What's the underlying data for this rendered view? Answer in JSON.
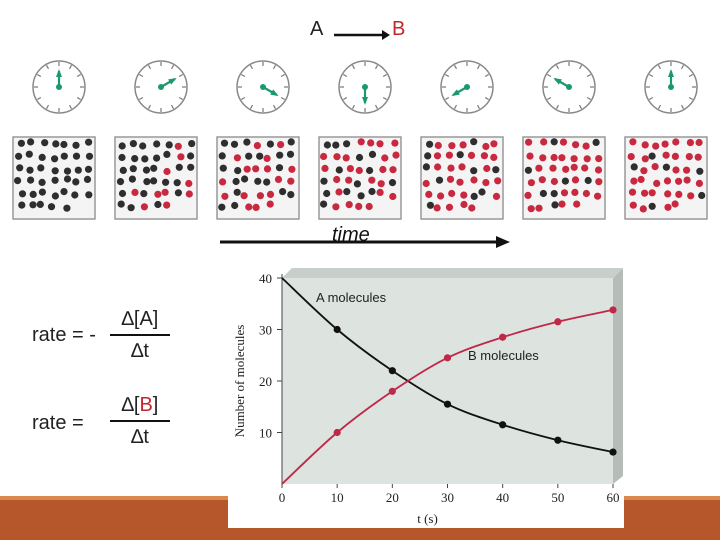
{
  "reaction": {
    "reactant": "A",
    "product": "B"
  },
  "clocks": [
    {
      "hand_angle_deg": 0
    },
    {
      "hand_angle_deg": 60
    },
    {
      "hand_angle_deg": 120
    },
    {
      "hand_angle_deg": 180
    },
    {
      "hand_angle_deg": 240
    },
    {
      "hand_angle_deg": 300
    },
    {
      "hand_angle_deg": 0
    }
  ],
  "boxes": [
    {
      "molecules_b": 0
    },
    {
      "molecules_b": 10
    },
    {
      "molecules_b": 18
    },
    {
      "molecules_b": 25
    },
    {
      "molecules_b": 29
    },
    {
      "molecules_b": 32
    },
    {
      "molecules_b": 34
    }
  ],
  "box_total_molecules": 40,
  "time_label": "time",
  "equations": {
    "eq1": {
      "prefix": "rate = -",
      "num_open": "∆[",
      "num_var": "A",
      "num_close": "]",
      "den": "∆t"
    },
    "eq2": {
      "prefix": "rate =",
      "num_open": "∆[",
      "num_var": "B",
      "num_close": "]",
      "den": "∆t"
    }
  },
  "chart_data": {
    "type": "line",
    "x": [
      0,
      10,
      20,
      30,
      40,
      50,
      60
    ],
    "series": [
      {
        "name": "A molecules",
        "values": [
          40,
          30,
          22,
          15.5,
          11.5,
          8.5,
          6.2
        ],
        "color": "#111111"
      },
      {
        "name": "B molecules",
        "values": [
          0,
          10,
          18,
          24.5,
          28.5,
          31.5,
          33.8
        ],
        "color": "#c0284a"
      }
    ],
    "xlabel": "t (s)",
    "ylabel": "Number of molecules",
    "xticks": [
      0,
      10,
      20,
      30,
      40,
      50,
      60
    ],
    "yticks": [
      10,
      20,
      30,
      40
    ],
    "xlim": [
      0,
      60
    ],
    "ylim": [
      0,
      40
    ]
  },
  "colors": {
    "accent_red": "#c0282e",
    "clock_hand": "#1a9a6a",
    "plot_bg": "#dde3df",
    "footer": "#b5562b"
  }
}
